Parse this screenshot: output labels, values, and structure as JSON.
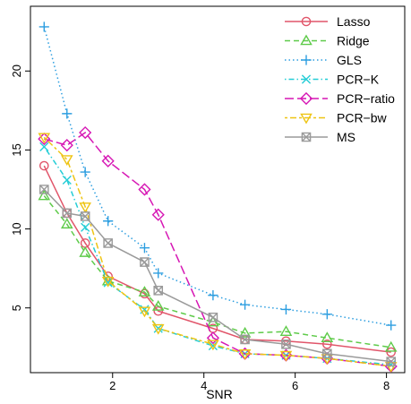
{
  "chart_data": {
    "type": "line",
    "title": "",
    "xlabel": "SNR",
    "ylabel": "",
    "xlim": [
      0.2,
      8.4
    ],
    "ylim": [
      0.9,
      24.1
    ],
    "xticks": [
      2,
      4,
      6,
      8
    ],
    "yticks": [
      5,
      10,
      15,
      20
    ],
    "grid": false,
    "legend_position": "top-right",
    "x": [
      0.5,
      1.0,
      1.4,
      1.9,
      2.7,
      3.0,
      4.2,
      4.9,
      5.8,
      6.7,
      8.1
    ],
    "series": [
      {
        "name": "Lasso",
        "color": "#e1556a",
        "dash": "solid",
        "marker": "circle",
        "values": [
          14.0,
          11.0,
          9.1,
          7.0,
          5.9,
          4.8,
          3.7,
          3.0,
          2.9,
          2.7,
          2.2
        ]
      },
      {
        "name": "Ridge",
        "color": "#5fcb4a",
        "dash": "dashed",
        "marker": "triangle-up",
        "values": [
          12.1,
          10.3,
          8.5,
          6.7,
          6.0,
          5.1,
          4.1,
          3.4,
          3.5,
          3.1,
          2.5
        ]
      },
      {
        "name": "GLS",
        "color": "#2d9ee0",
        "dash": "dotted",
        "marker": "plus",
        "values": [
          22.8,
          17.3,
          13.6,
          10.5,
          8.8,
          7.2,
          5.8,
          5.2,
          4.9,
          4.6,
          3.9
        ]
      },
      {
        "name": "PCR−K",
        "color": "#25cdd6",
        "dash": "dotdash",
        "marker": "cross",
        "values": [
          15.2,
          13.1,
          10.1,
          6.6,
          4.9,
          3.7,
          2.6,
          2.1,
          2.0,
          1.8,
          1.4
        ]
      },
      {
        "name": "PCR−ratio",
        "color": "#d616b4",
        "dash": "longdash",
        "marker": "diamond",
        "values": [
          15.7,
          15.3,
          16.1,
          14.3,
          12.5,
          10.9,
          3.1,
          2.1,
          2.0,
          1.8,
          1.3
        ]
      },
      {
        "name": "PCR−bw",
        "color": "#eec413",
        "dash": "twodash",
        "marker": "triangle-down",
        "values": [
          15.8,
          14.4,
          11.4,
          6.7,
          4.8,
          3.7,
          2.7,
          2.1,
          2.0,
          1.8,
          1.3
        ]
      },
      {
        "name": "MS",
        "color": "#9a9a9a",
        "dash": "solid",
        "marker": "square-x",
        "values": [
          12.5,
          11.0,
          10.8,
          9.1,
          7.9,
          6.1,
          4.4,
          3.0,
          2.7,
          2.1,
          1.6
        ]
      }
    ]
  }
}
